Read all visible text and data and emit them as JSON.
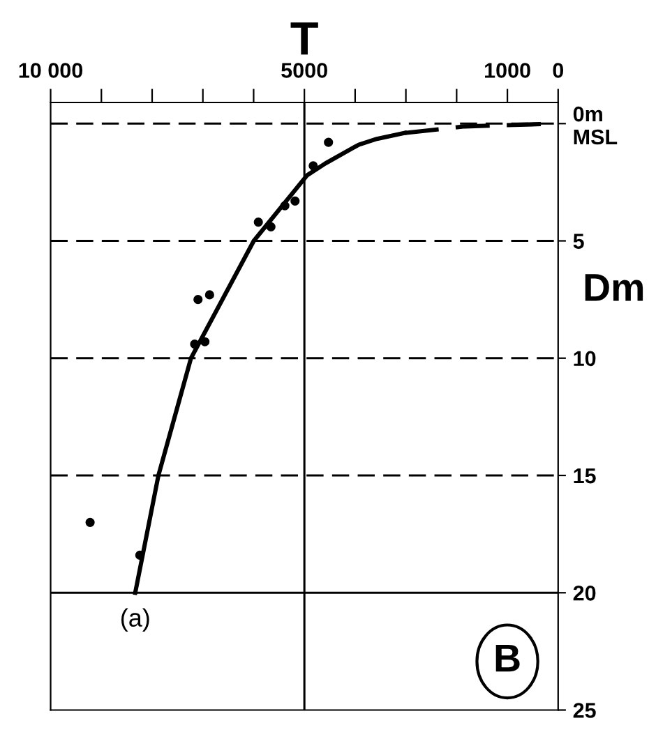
{
  "chart_data": {
    "type": "scatter",
    "xlabel": "T",
    "ylabel": "Dm",
    "xlim": [
      10000,
      0
    ],
    "ylim": [
      25,
      -0.9
    ],
    "xticks": [
      {
        "value": 10000,
        "label": "10 000"
      },
      {
        "value": 9000,
        "label": null
      },
      {
        "value": 8000,
        "label": null
      },
      {
        "value": 7000,
        "label": null
      },
      {
        "value": 6000,
        "label": null
      },
      5000,
      {
        "value": 4000,
        "label": null
      },
      {
        "value": 3000,
        "label": null
      },
      {
        "value": 2000,
        "label": null
      },
      1000,
      0
    ],
    "yticks": [
      {
        "value": 0,
        "label": "0m\nMSL"
      },
      5,
      10,
      15,
      20,
      25
    ],
    "grid": false,
    "legend": false,
    "series": [
      {
        "marker": "circle",
        "color": "#000000",
        "x": [
          4525,
          4826,
          5184,
          5385,
          5659,
          5907,
          6868,
          7096,
          6960,
          7162,
          9222,
          8242
        ],
        "values": [
          0.8,
          1.8,
          3.3,
          3.5,
          4.4,
          4.2,
          7.3,
          7.5,
          9.3,
          9.4,
          17.0,
          18.4
        ]
      },
      {
        "type": "line",
        "marker": "none",
        "line_style": "solid",
        "color": "#000000",
        "x": [
          8333,
          7876,
          7234,
          5997,
          4945,
          4588,
          3929,
          3571,
          3022
        ],
        "values": [
          20,
          15,
          10,
          5,
          2.2,
          1.7,
          0.9,
          0.65,
          0.4
        ]
      },
      {
        "type": "line",
        "marker": "none",
        "line_style": "dashed",
        "color": "#000000",
        "x": [
          3022,
          1841,
          0
        ],
        "values": [
          0.4,
          0.12,
          0
        ]
      }
    ],
    "ref_lines": [
      {
        "axis": "y",
        "value": 0,
        "line_style": "dashed",
        "color": "#000000"
      },
      {
        "axis": "y",
        "value": 5,
        "line_style": "dashed",
        "color": "#000000"
      },
      {
        "axis": "y",
        "value": 10,
        "line_style": "dashed",
        "color": "#000000"
      },
      {
        "axis": "y",
        "value": 15,
        "line_style": "dashed",
        "color": "#000000"
      },
      {
        "axis": "y",
        "value": 20,
        "line_style": "solid",
        "color": "#000000"
      },
      {
        "axis": "x",
        "value": 5000,
        "line_style": "solid",
        "color": "#000000"
      }
    ],
    "annotations": [
      {
        "text": "(a)",
        "x": 8333,
        "y": 20
      },
      "B"
    ]
  }
}
